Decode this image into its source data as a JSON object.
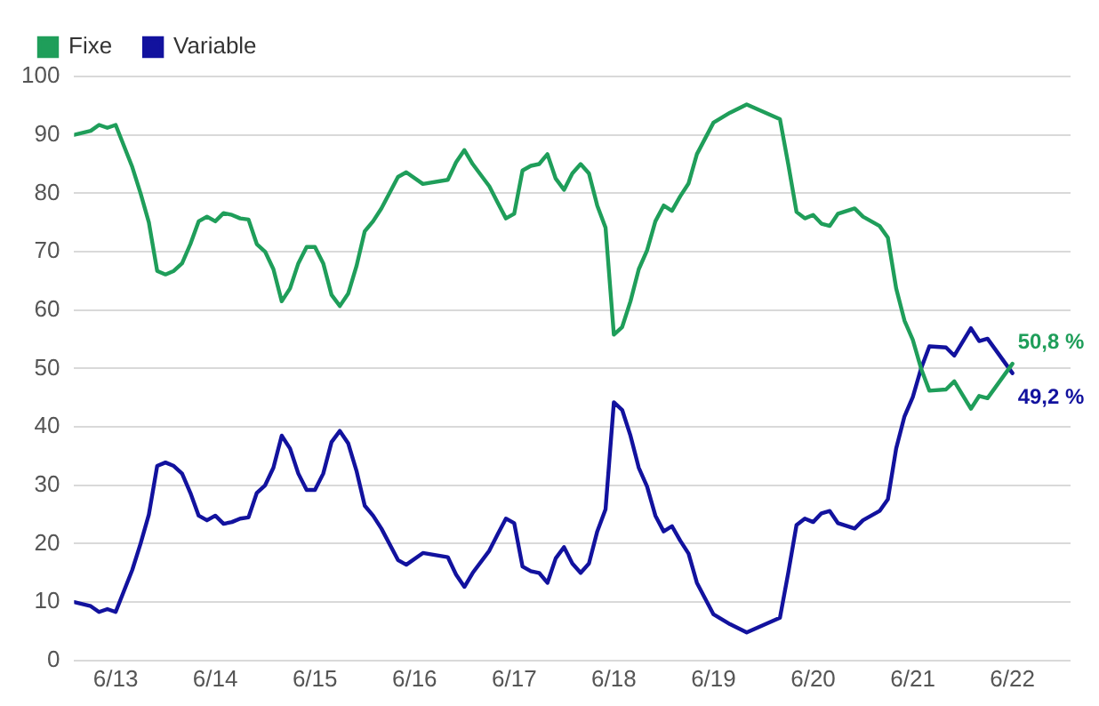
{
  "chart_data": {
    "type": "line",
    "x": [
      "2013-01",
      "2013-03",
      "2013-04",
      "2013-05",
      "2013-06",
      "2013-08",
      "2013-09",
      "2013-10",
      "2013-11",
      "2013-12",
      "2014-01",
      "2014-02",
      "2014-03",
      "2014-04",
      "2014-05",
      "2014-06",
      "2014-07",
      "2014-08",
      "2014-09",
      "2014-10",
      "2014-11",
      "2014-12",
      "2015-01",
      "2015-02",
      "2015-03",
      "2015-04",
      "2015-05",
      "2015-06",
      "2015-07",
      "2015-08",
      "2015-09",
      "2015-10",
      "2015-11",
      "2015-12",
      "2016-01",
      "2016-02",
      "2016-04",
      "2016-05",
      "2016-07",
      "2016-10",
      "2016-11",
      "2016-12",
      "2017-01",
      "2017-03",
      "2017-04",
      "2017-05",
      "2017-06",
      "2017-07",
      "2017-08",
      "2017-09",
      "2017-10",
      "2017-11",
      "2017-12",
      "2018-01",
      "2018-02",
      "2018-03",
      "2018-04",
      "2018-05",
      "2018-06",
      "2018-07",
      "2018-08",
      "2018-09",
      "2018-10",
      "2018-11",
      "2018-12",
      "2019-01",
      "2019-02",
      "2019-03",
      "2019-04",
      "2019-06",
      "2019-08",
      "2019-10",
      "2020-02",
      "2020-03",
      "2020-04",
      "2020-05",
      "2020-06",
      "2020-07",
      "2020-08",
      "2020-09",
      "2020-11",
      "2020-12",
      "2021-02",
      "2021-03",
      "2021-04",
      "2021-05",
      "2021-06",
      "2021-07",
      "2021-08",
      "2021-10",
      "2021-11",
      "2022-01",
      "2022-02",
      "2022-03",
      "2022-06"
    ],
    "series": [
      {
        "name": "Fixe",
        "color": "#1f9e5a",
        "values": [
          90,
          90.7,
          91.7,
          91.2,
          91.7,
          84.5,
          80,
          75,
          66.7,
          66.1,
          66.7,
          68,
          71.3,
          75.2,
          76,
          75.2,
          76.6,
          76.3,
          75.7,
          75.5,
          71.3,
          70,
          67,
          61.5,
          63.7,
          68,
          70.8,
          70.8,
          68,
          62.6,
          60.7,
          62.8,
          67.5,
          73.5,
          75.2,
          77.4,
          82.8,
          83.6,
          81.6,
          82.3,
          85.3,
          87.4,
          85,
          81.2,
          78.4,
          75.7,
          76.5,
          83.9,
          84.7,
          85,
          86.7,
          82.5,
          80.6,
          83.4,
          85,
          83.4,
          77.9,
          74.1,
          55.8,
          57.1,
          61.5,
          67,
          70.2,
          75.2,
          77.9,
          77,
          79.5,
          81.7,
          86.7,
          92.1,
          93.8,
          95.2,
          92.7,
          85,
          76.8,
          75.7,
          76.3,
          74.8,
          74.4,
          76.5,
          77.4,
          76,
          74.4,
          72.4,
          63.7,
          58.2,
          54.9,
          50,
          46.2,
          46.4,
          47.8,
          43.1,
          45.3,
          44.9,
          50.8
        ]
      },
      {
        "name": "Variable",
        "color": "#12129e",
        "values": [
          10,
          9.3,
          8.3,
          8.8,
          8.3,
          15.5,
          20,
          25,
          33.3,
          33.9,
          33.3,
          32,
          28.7,
          24.8,
          24,
          24.8,
          23.4,
          23.7,
          24.3,
          24.5,
          28.7,
          30,
          33,
          38.5,
          36.3,
          32,
          29.2,
          29.2,
          32,
          37.4,
          39.3,
          37.2,
          32.5,
          26.5,
          24.8,
          22.6,
          17.2,
          16.4,
          18.4,
          17.7,
          14.7,
          12.6,
          15,
          18.8,
          21.6,
          24.3,
          23.5,
          16.1,
          15.3,
          15,
          13.3,
          17.5,
          19.4,
          16.6,
          15,
          16.6,
          22.1,
          25.9,
          44.2,
          42.9,
          38.5,
          33,
          29.8,
          24.8,
          22.1,
          23,
          20.5,
          18.3,
          13.3,
          7.9,
          6.2,
          4.8,
          7.3,
          15,
          23.2,
          24.3,
          23.7,
          25.2,
          25.6,
          23.5,
          22.6,
          24,
          25.6,
          27.6,
          36.3,
          41.8,
          45.1,
          50,
          53.8,
          53.6,
          52.2,
          56.9,
          54.7,
          55.1,
          49.2
        ]
      }
    ],
    "xlim": [
      "2013-01",
      "2023-01"
    ],
    "xticks": [
      {
        "value": "2013-06",
        "label": "6/13"
      },
      {
        "value": "2014-06",
        "label": "6/14"
      },
      {
        "value": "2015-06",
        "label": "6/15"
      },
      {
        "value": "2016-06",
        "label": "6/16"
      },
      {
        "value": "2017-06",
        "label": "6/17"
      },
      {
        "value": "2018-06",
        "label": "6/18"
      },
      {
        "value": "2019-06",
        "label": "6/19"
      },
      {
        "value": "2020-06",
        "label": "6/20"
      },
      {
        "value": "2021-06",
        "label": "6/21"
      },
      {
        "value": "2022-06",
        "label": "6/22"
      }
    ],
    "ylim": [
      0,
      100
    ],
    "yticks": [
      0,
      10,
      20,
      30,
      40,
      50,
      60,
      70,
      80,
      90,
      100
    ],
    "annotations": [
      {
        "text": "50,8 %",
        "x": "2022-06",
        "y": 50.8
      },
      {
        "text": "49,2 %",
        "x": "2022-06",
        "y": 49.2
      }
    ],
    "grid": "y",
    "legend": "top left",
    "marker": "none",
    "line_style": "solid"
  }
}
